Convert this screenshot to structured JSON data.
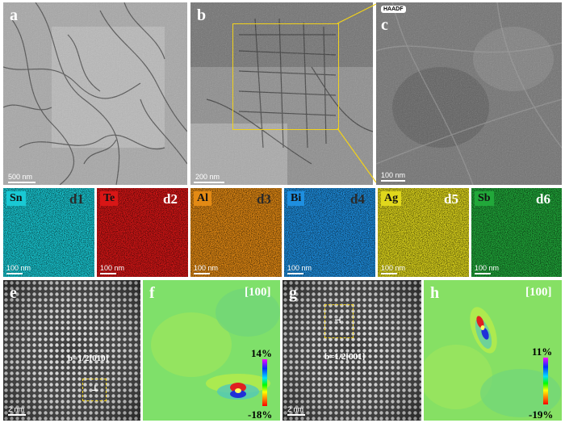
{
  "panels": {
    "a": {
      "label": "a",
      "scale": "500 nm"
    },
    "b": {
      "label": "b",
      "scale": "200 nm"
    },
    "c": {
      "label": "c",
      "tag": "HAADF",
      "scale": "100 nm"
    },
    "d1": {
      "label": "d1",
      "element": "Sn",
      "scale": "100 nm",
      "color": "#19c9d4"
    },
    "d2": {
      "label": "d2",
      "element": "Te",
      "scale": "100 nm",
      "color": "#d81616"
    },
    "d3": {
      "label": "d3",
      "element": "Al",
      "scale": "100 nm",
      "color": "#e38a14"
    },
    "d4": {
      "label": "d4",
      "element": "Bi",
      "scale": "100 nm",
      "color": "#1e8fe0"
    },
    "d5": {
      "label": "d5",
      "element": "Ag",
      "scale": "100 nm",
      "color": "#e0d81c"
    },
    "d6": {
      "label": "d6",
      "element": "Sb",
      "scale": "100 nm",
      "color": "#21a83a"
    },
    "e": {
      "label": "e",
      "burgers": "b=1/2[010]",
      "scale": "2 nm"
    },
    "f": {
      "label": "f",
      "zone": "[100]",
      "max": "14%",
      "min": "-18%"
    },
    "g": {
      "label": "g",
      "burgers": "b=1/2[001]",
      "scale": "2 nm"
    },
    "h": {
      "label": "h",
      "zone": "[100]",
      "max": "11%",
      "min": "-19%"
    }
  }
}
